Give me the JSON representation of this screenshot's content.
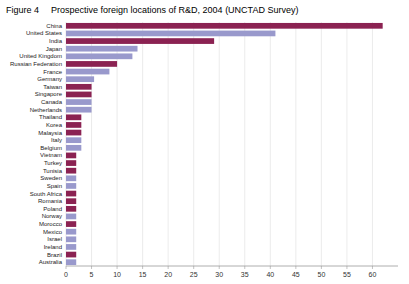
{
  "chart_data": {
    "type": "bar",
    "orientation": "horizontal",
    "title": "Figure 4",
    "subtitle": "Prospective foreign locations of R&D, 2004 (UNCTAD Survey)",
    "categories": [
      "China",
      "United States",
      "India",
      "Japan",
      "United Kingdom",
      "Russian Federation",
      "France",
      "Germany",
      "Taiwan",
      "Singapore",
      "Canada",
      "Netherlands",
      "Thailand",
      "Korea",
      "Malaysia",
      "Italy",
      "Belgium",
      "Vietnam",
      "Turkey",
      "Tunisia",
      "Sweden",
      "Spain",
      "South Africa",
      "Romania",
      "Poland",
      "Norway",
      "Morocco",
      "Mexico",
      "Israel",
      "Ireland",
      "Brazil",
      "Australia"
    ],
    "values": [
      62,
      41,
      29,
      14,
      13,
      10,
      8.5,
      5.5,
      5,
      5,
      5,
      5,
      3,
      3,
      3,
      3,
      3,
      2,
      2,
      2,
      2,
      2,
      2,
      2,
      2,
      2,
      2,
      2,
      2,
      2,
      2,
      2
    ],
    "colors": [
      "#8B2252",
      "#9999CC",
      "#8B2252",
      "#9999CC",
      "#9999CC",
      "#8B2252",
      "#9999CC",
      "#9999CC",
      "#8B2252",
      "#8B2252",
      "#9999CC",
      "#9999CC",
      "#8B2252",
      "#8B2252",
      "#8B2252",
      "#9999CC",
      "#9999CC",
      "#8B2252",
      "#8B2252",
      "#8B2252",
      "#9999CC",
      "#9999CC",
      "#8B2252",
      "#8B2252",
      "#8B2252",
      "#9999CC",
      "#8B2252",
      "#9999CC",
      "#9999CC",
      "#9999CC",
      "#8B2252",
      "#9999CC"
    ],
    "xlim": [
      0,
      65
    ],
    "xticks": [
      0,
      5,
      10,
      15,
      20,
      25,
      30,
      35,
      40,
      45,
      50,
      55,
      60
    ],
    "grid": true
  }
}
